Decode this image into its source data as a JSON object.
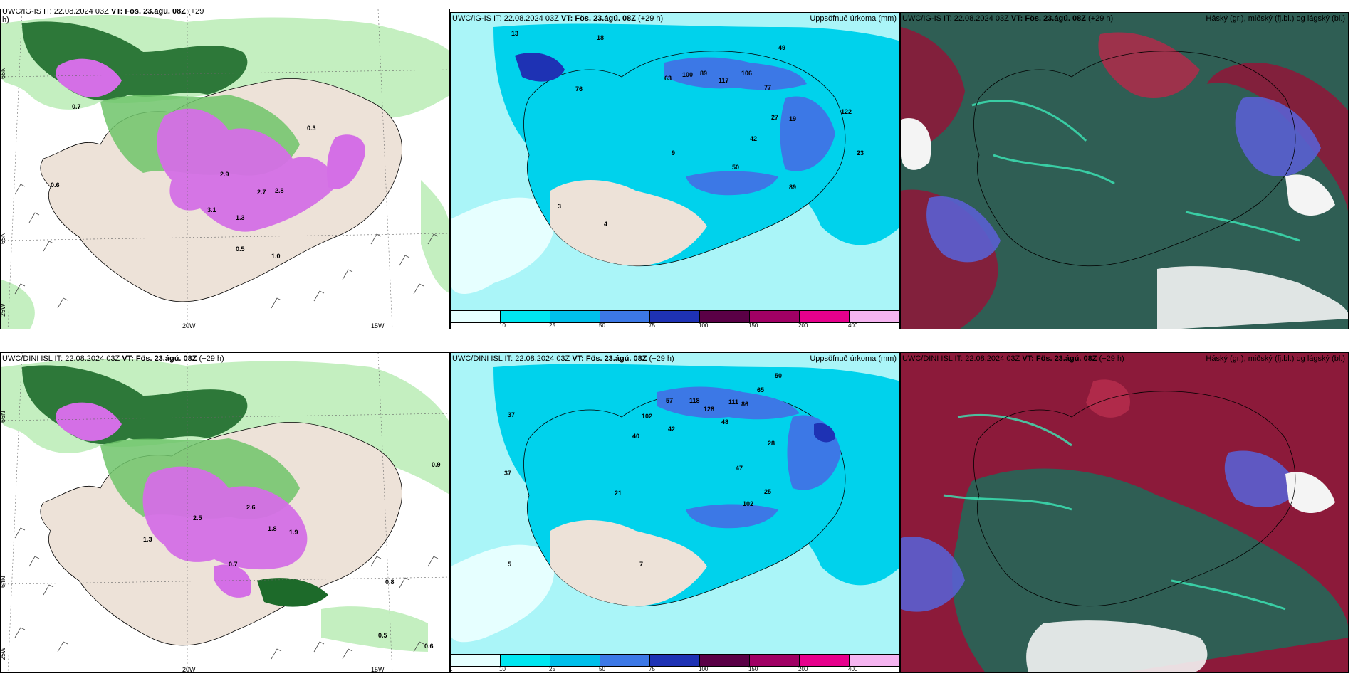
{
  "panels": {
    "p1": {
      "title_plain": "UWC/IG-IS IT: 22.08.2024 03Z ",
      "title_bold": "VT: Fös. 23.ágú. 08Z",
      "title_tail": " (+29",
      "title_line2": "h)",
      "right": ""
    },
    "p2": {
      "title_plain": "UWC/IG-IS IT: 22.08.2024 03Z ",
      "title_bold": "VT: Fös. 23.ágú. 08Z",
      "title_tail": " (+29 h)",
      "right": "Uppsöfnuð úrkoma (mm)"
    },
    "p3": {
      "title_plain": "UWC/IG-IS IT: 22.08.2024 03Z ",
      "title_bold": "VT: Fös. 23.ágú. 08Z",
      "title_tail": " (+29 h)",
      "right": "Háský (gr.), miðský (fj.bl.) og lágský (bl.)"
    },
    "p4": {
      "title_plain": "UWC/DINI ISL IT: 22.08.2024 03Z ",
      "title_bold": "VT: Fös. 23.ágú. 08Z",
      "title_tail": " (+29 h)",
      "right": ""
    },
    "p5": {
      "title_plain": "UWC/DINI ISL IT: 22.08.2024 03Z ",
      "title_bold": "VT: Fös. 23.ágú. 08Z",
      "title_tail": " (+29 h)",
      "right": "Uppsöfnuð úrkoma (mm)"
    },
    "p6": {
      "title_plain": "UWC/DINI ISL IT: 22.08.2024 03Z ",
      "title_bold": "VT: Fös. 23.ágú. 08Z",
      "title_tail": " (+29 h)",
      "right": "Háský (gr.), miðský (fj.bl.) og lágský (bl.)"
    }
  },
  "axis_labels": {
    "lat66": "66N",
    "lat65": "65N",
    "lat64": "64N",
    "lon25": "25W",
    "lon20": "20W",
    "lon15": "15W"
  },
  "colorbar": {
    "ticks": [
      "1",
      "10",
      "25",
      "50",
      "75",
      "100",
      "150",
      "200",
      "400"
    ],
    "colors": [
      "#e6ffff",
      "#00e6f0",
      "#00bfea",
      "#3c78e6",
      "#1e32b4",
      "#5a0046",
      "#a00064",
      "#e6008c",
      "#f5b4f0"
    ]
  },
  "colors": {
    "land": "#ede2d8",
    "sea_precip": "#aaf5f8",
    "precip_mid": "#00d2ec",
    "precip_heavy": "#2850d8",
    "green_light": "#c4efc0",
    "green_mid": "#6fc46a",
    "green_dark": "#1d6a2a",
    "magenta": "#d46fe6",
    "cloud_dark": "#2f5e54",
    "cloud_red": "#8c1a3a",
    "cloud_blue": "#5a5fd2",
    "cloud_white": "#f4f4f4"
  },
  "precip_numbers_top": [
    "13",
    "18",
    "49",
    "63",
    "100",
    "89",
    "117",
    "106",
    "77",
    "122",
    "76",
    "27",
    "19",
    "42",
    "50",
    "89",
    "23",
    "9",
    "3",
    "4"
  ],
  "precip_numbers_bottom": [
    "50",
    "65",
    "86",
    "102",
    "57",
    "118",
    "128",
    "111",
    "48",
    "42",
    "40",
    "28",
    "47",
    "102",
    "25",
    "37",
    "37",
    "21",
    "5",
    "7"
  ],
  "left_numbers_top": [
    "2.9",
    "3.1",
    "2.7",
    "2.8",
    "1.3",
    "0.7",
    "0.6",
    "1.0",
    "0.5",
    "0.3"
  ],
  "left_numbers_bottom": [
    "2.5",
    "2.6",
    "1.8",
    "1.9",
    "0.7",
    "1.3",
    "0.9",
    "0.8",
    "0.5",
    "0.6"
  ]
}
